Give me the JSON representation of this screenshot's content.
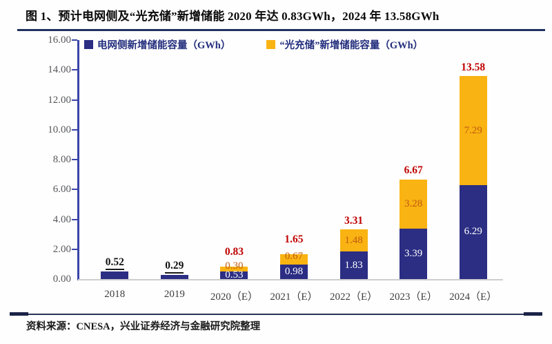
{
  "figure": {
    "title": "图 1、预计电网侧及“光充储”新增储能 2020 年达 0.83GWh，2024 年 13.58GWh",
    "source": "资料来源：CNESA，兴业证券经济与金融研究院整理"
  },
  "legend": {
    "grid": "电网侧新增储能容量（GWh）",
    "solar": "“光充储”新增储能容量（GWh）"
  },
  "colors": {
    "grid_bar": "#2b2e83",
    "solar_bar": "#f9b312",
    "axis_line": "#3a44a8",
    "baseline": "#cdcdcd",
    "total_red": "#c00000",
    "total_black": "#111111",
    "solar_label": "#c05a11",
    "grid_label": "#ffffff",
    "legend_text": "#232e7d"
  },
  "chart_data": {
    "type": "bar",
    "stacked": true,
    "title": "预计电网侧及“光充储”新增储能 2020 年达 0.83GWh，2024 年 13.58GWh",
    "xlabel": "",
    "ylabel": "GWh",
    "ylim": [
      0,
      16
    ],
    "grid": false,
    "legend_position": "top",
    "yticks": [
      "0.00",
      "2.00",
      "4.00",
      "6.00",
      "8.00",
      "10.00",
      "12.00",
      "14.00",
      "16.00"
    ],
    "categories": [
      "2018",
      "2019",
      "2020（E）",
      "2021（E）",
      "2022（E）",
      "2023（E）",
      "2024（E）"
    ],
    "series": [
      {
        "name": "电网侧新增储能容量（GWh）",
        "color": "#2b2e83",
        "values": [
          0.52,
          0.29,
          0.53,
          0.98,
          1.83,
          3.39,
          6.29
        ],
        "bar_labels": [
          "",
          "",
          "0.53",
          "0.98",
          "1.83",
          "3.39",
          "6.29"
        ],
        "label_color": "#ffffff"
      },
      {
        "name": "“光充储”新增储能容量（GWh）",
        "color": "#f9b312",
        "values": [
          0,
          0,
          0.3,
          0.67,
          1.48,
          3.28,
          7.29
        ],
        "bar_labels": [
          "",
          "",
          "0.30",
          "0.67",
          "1.48",
          "3.28",
          "7.29"
        ],
        "label_color": "#c05a11"
      }
    ],
    "totals": {
      "labels": [
        "0.52",
        "0.29",
        "0.83",
        "1.65",
        "3.31",
        "6.67",
        "13.58"
      ],
      "styles": [
        "black",
        "black",
        "red",
        "red",
        "red",
        "red",
        "red"
      ]
    }
  }
}
